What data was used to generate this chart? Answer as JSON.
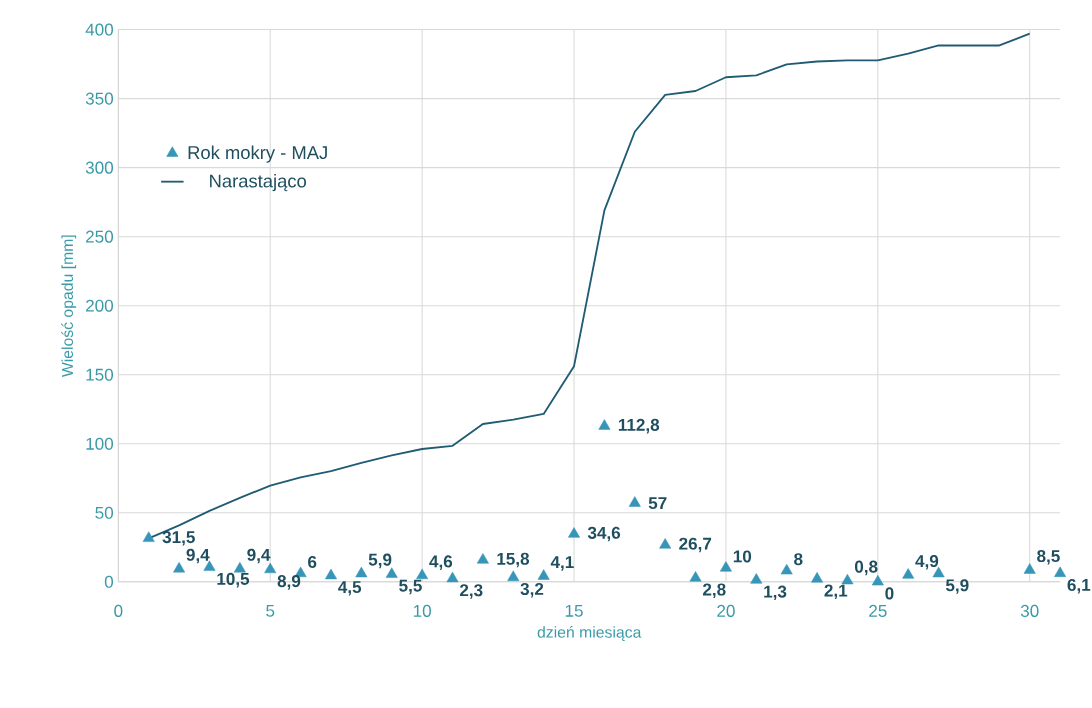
{
  "chart_data": {
    "type": "scatter",
    "xlabel": "dzień miesiąca",
    "ylabel": "Wielość opadu [mm]",
    "x": [
      1,
      2,
      3,
      4,
      5,
      6,
      7,
      8,
      9,
      10,
      11,
      12,
      13,
      14,
      15,
      16,
      17,
      18,
      19,
      20,
      21,
      22,
      23,
      24,
      25,
      26,
      27,
      28,
      29,
      30,
      31
    ],
    "xlim": [
      0,
      31
    ],
    "xticks": [
      0,
      5,
      10,
      15,
      20,
      25,
      30
    ],
    "ylim": [
      0,
      400
    ],
    "yticks": [
      0,
      50,
      100,
      150,
      200,
      250,
      300,
      350,
      400
    ],
    "grid": true,
    "legend": "top left",
    "series": [
      {
        "name": "Rok mokry - MAJ",
        "marker": "triangle",
        "color": "#3795b8",
        "values": [
          31.5,
          9.4,
          10.5,
          9.4,
          8.9,
          6,
          4.5,
          5.9,
          5.5,
          4.6,
          2.3,
          15.8,
          3.2,
          4.1,
          34.6,
          112.8,
          57,
          26.7,
          2.8,
          10,
          1.3,
          8,
          2.1,
          0.8,
          0,
          4.9,
          5.9,
          null,
          null,
          8.5,
          6.1
        ],
        "value_labels": [
          "31,5",
          "9,4",
          "10,5",
          "9,4",
          "8,9",
          "6",
          "4,5",
          "5,9",
          "5,5",
          "4,6",
          "2,3",
          "15,8",
          "3,2",
          "4,1",
          "34,6",
          "112,8",
          "57",
          "26,7",
          "2,8",
          "10",
          "1,3",
          "8",
          "2,1",
          "0,8",
          "0",
          "4,9",
          "5,9",
          null,
          null,
          "8,5",
          "6,1"
        ]
      },
      {
        "name": "Narastająco",
        "type": "line",
        "color": "#1f5c73",
        "values": [
          31.5,
          40.9,
          51.4,
          60.8,
          69.7,
          75.7,
          80.2,
          86.1,
          91.6,
          96.2,
          98.5,
          114.3,
          117.5,
          121.6,
          156.2,
          269,
          326,
          352.7,
          355.5,
          365.5,
          366.8,
          374.8,
          376.9,
          377.7,
          377.7,
          382.6,
          388.5,
          388.5,
          388.5,
          397,
          null
        ]
      }
    ]
  }
}
